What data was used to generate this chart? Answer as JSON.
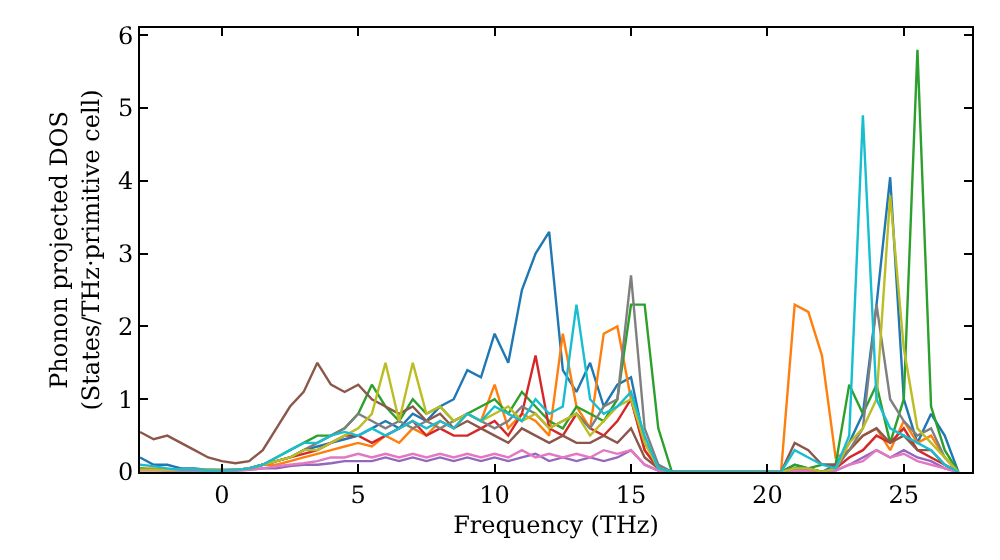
{
  "chart_data": {
    "type": "line",
    "xlabel": "Frequency (THz)",
    "ylabel": "Phonon projected DOS\n(States/THz·primitive cell)",
    "x": [
      -3,
      -2.5,
      -2,
      -1.5,
      -1,
      -0.5,
      0,
      0.5,
      1,
      1.5,
      2,
      2.5,
      3,
      3.5,
      4,
      4.5,
      5,
      5.5,
      6,
      6.5,
      7,
      7.5,
      8,
      8.5,
      9,
      9.5,
      10,
      10.5,
      11,
      11.5,
      12,
      12.5,
      13,
      13.5,
      14,
      14.5,
      15,
      15.5,
      16,
      16.5,
      17,
      17.5,
      18,
      18.5,
      19,
      19.5,
      20,
      20.5,
      21,
      21.5,
      22,
      22.5,
      23,
      23.5,
      24,
      24.5,
      25,
      25.5,
      26,
      26.5,
      27
    ],
    "xlim": [
      -3,
      27.5
    ],
    "ylim": [
      0,
      6.1
    ],
    "xticks": [
      0,
      5,
      10,
      15,
      20,
      25
    ],
    "yticks": [
      0,
      1,
      2,
      3,
      4,
      5,
      6
    ],
    "marker": "none",
    "line_style": "solid",
    "series": [
      {
        "color": "#1f77b4",
        "values": [
          0.2,
          0.1,
          0.1,
          0.05,
          0.05,
          0.03,
          0.02,
          0.02,
          0.05,
          0.1,
          0.15,
          0.2,
          0.3,
          0.35,
          0.4,
          0.45,
          0.5,
          0.6,
          0.7,
          0.6,
          0.8,
          0.7,
          0.9,
          1.0,
          1.4,
          1.3,
          1.9,
          1.5,
          2.5,
          3.0,
          3.3,
          1.4,
          1.1,
          1.5,
          0.9,
          1.2,
          1.3,
          0.4,
          0.1,
          0,
          0,
          0,
          0,
          0,
          0,
          0,
          0,
          0,
          0.1,
          0.05,
          0,
          0.1,
          0.4,
          0.8,
          2.3,
          4.05,
          1.0,
          0.4,
          0.8,
          0.5,
          0
        ]
      },
      {
        "color": "#ff7f0e",
        "values": [
          0.05,
          0.05,
          0.03,
          0.02,
          0.02,
          0.02,
          0.02,
          0.03,
          0.05,
          0.1,
          0.1,
          0.15,
          0.2,
          0.25,
          0.3,
          0.35,
          0.4,
          0.35,
          0.5,
          0.4,
          0.6,
          0.5,
          0.7,
          0.6,
          0.8,
          0.7,
          1.2,
          0.6,
          0.8,
          0.7,
          0.5,
          1.9,
          0.9,
          0.6,
          1.9,
          2.0,
          1.0,
          0.3,
          0.05,
          0,
          0,
          0,
          0,
          0,
          0,
          0,
          0,
          0,
          2.3,
          2.2,
          1.6,
          0.2,
          0.3,
          0.5,
          0.6,
          0.3,
          0.7,
          0.4,
          0.5,
          0.2,
          0
        ]
      },
      {
        "color": "#2ca02c",
        "values": [
          0.05,
          0.03,
          0.02,
          0.02,
          0.02,
          0.02,
          0.02,
          0.03,
          0.05,
          0.1,
          0.2,
          0.3,
          0.4,
          0.5,
          0.5,
          0.6,
          0.8,
          1.2,
          0.9,
          0.7,
          1.0,
          0.8,
          0.9,
          0.7,
          0.8,
          0.9,
          1.0,
          0.8,
          1.1,
          0.9,
          0.7,
          0.6,
          0.9,
          0.8,
          0.7,
          1.0,
          2.3,
          2.3,
          0.6,
          0,
          0,
          0,
          0,
          0,
          0,
          0,
          0,
          0,
          0.1,
          0.05,
          0.1,
          0.1,
          1.2,
          0.8,
          1.2,
          0.4,
          1.0,
          5.8,
          0.9,
          0.3,
          0
        ]
      },
      {
        "color": "#d62728",
        "values": [
          null,
          null,
          null,
          null,
          null,
          null,
          null,
          null,
          0.05,
          0.1,
          0.15,
          0.2,
          0.25,
          0.3,
          0.4,
          0.5,
          0.5,
          0.4,
          0.5,
          0.6,
          0.7,
          0.5,
          0.6,
          0.5,
          0.5,
          0.6,
          0.7,
          0.5,
          0.8,
          1.6,
          0.6,
          0.5,
          0.8,
          0.6,
          0.5,
          0.7,
          1.0,
          0.3,
          0.05,
          0,
          0,
          0,
          0,
          0,
          0,
          0,
          0,
          0,
          0.05,
          0.05,
          0,
          0.05,
          0.2,
          0.3,
          0.5,
          0.4,
          0.6,
          0.3,
          0.2,
          0.1,
          0
        ]
      },
      {
        "color": "#9467bd",
        "values": [
          null,
          null,
          null,
          0.02,
          0.02,
          0.02,
          0.02,
          0.02,
          0.03,
          0.05,
          0.05,
          0.08,
          0.1,
          0.1,
          0.12,
          0.15,
          0.15,
          0.15,
          0.2,
          0.15,
          0.2,
          0.15,
          0.2,
          0.15,
          0.2,
          0.15,
          0.2,
          0.15,
          0.2,
          0.25,
          0.15,
          0.2,
          0.15,
          0.2,
          0.15,
          0.2,
          0.3,
          0.1,
          0.02,
          0,
          0,
          0,
          0,
          0,
          0,
          0,
          0,
          0,
          0.02,
          0.02,
          0,
          0.02,
          0.1,
          0.2,
          0.3,
          0.2,
          0.3,
          0.2,
          0.15,
          0.05,
          0
        ]
      },
      {
        "color": "#8c564b",
        "values": [
          0.55,
          0.45,
          0.5,
          0.4,
          0.3,
          0.2,
          0.15,
          0.12,
          0.15,
          0.3,
          0.6,
          0.9,
          1.1,
          1.5,
          1.2,
          1.1,
          1.2,
          1.0,
          0.9,
          0.8,
          0.9,
          0.7,
          0.8,
          0.6,
          0.7,
          0.6,
          0.5,
          0.4,
          0.6,
          0.5,
          0.4,
          0.5,
          0.4,
          0.4,
          0.5,
          0.4,
          0.6,
          0.2,
          0.05,
          0,
          0,
          0,
          0,
          0,
          0,
          0,
          0,
          0,
          0.4,
          0.3,
          0.1,
          0.1,
          0.3,
          0.5,
          0.6,
          0.4,
          0.5,
          0.3,
          0.3,
          0.1,
          0
        ]
      },
      {
        "color": "#e377c2",
        "values": [
          0.02,
          0.02,
          0.02,
          0.02,
          0.02,
          0.02,
          0.02,
          0.02,
          0.03,
          0.05,
          0.08,
          0.1,
          0.12,
          0.15,
          0.2,
          0.2,
          0.25,
          0.2,
          0.25,
          0.2,
          0.25,
          0.2,
          0.25,
          0.2,
          0.25,
          0.2,
          0.25,
          0.2,
          0.3,
          0.2,
          0.25,
          0.2,
          0.25,
          0.2,
          0.3,
          0.25,
          0.3,
          0.1,
          0.02,
          0,
          0,
          0,
          0,
          0,
          0,
          0,
          0,
          0,
          0.02,
          0.02,
          0,
          0.02,
          0.1,
          0.15,
          0.3,
          0.2,
          0.25,
          0.15,
          0.1,
          0.05,
          0
        ]
      },
      {
        "color": "#7f7f7f",
        "values": [
          0.03,
          0.03,
          0.03,
          0.03,
          0.03,
          0.03,
          0.03,
          0.03,
          0.05,
          0.1,
          0.15,
          0.2,
          0.3,
          0.4,
          0.5,
          0.6,
          0.8,
          0.7,
          0.6,
          0.7,
          0.6,
          0.7,
          0.6,
          0.7,
          0.8,
          0.7,
          0.6,
          0.7,
          0.9,
          0.8,
          0.6,
          0.7,
          0.8,
          0.6,
          0.9,
          1.0,
          2.7,
          0.6,
          0.1,
          0,
          0,
          0,
          0,
          0,
          0,
          0,
          0,
          0,
          0.05,
          0.05,
          0,
          0.05,
          0.3,
          0.6,
          2.3,
          1.0,
          0.7,
          0.5,
          0.6,
          0.2,
          0
        ]
      },
      {
        "color": "#bcbd22",
        "values": [
          0.03,
          0.03,
          0.03,
          0.03,
          0.03,
          0.03,
          0.03,
          0.03,
          0.05,
          0.1,
          0.15,
          0.2,
          0.3,
          0.3,
          0.4,
          0.5,
          0.6,
          0.8,
          1.5,
          0.7,
          1.5,
          0.8,
          0.9,
          0.7,
          0.8,
          0.7,
          0.8,
          0.9,
          0.7,
          0.8,
          0.6,
          0.7,
          0.8,
          0.5,
          0.7,
          0.9,
          1.0,
          0.4,
          0.05,
          0,
          0,
          0,
          0,
          0,
          0,
          0,
          0,
          0,
          0.05,
          0.05,
          0,
          0.05,
          0.4,
          0.6,
          1.0,
          3.8,
          1.7,
          0.6,
          0.4,
          0.2,
          0
        ]
      },
      {
        "color": "#17becf",
        "values": [
          0.1,
          0.08,
          0.05,
          0.03,
          0.03,
          0.02,
          0.02,
          0.03,
          0.05,
          0.1,
          0.2,
          0.3,
          0.4,
          0.4,
          0.5,
          0.55,
          0.5,
          0.6,
          0.5,
          0.6,
          0.7,
          0.6,
          0.7,
          0.6,
          0.8,
          0.7,
          0.9,
          0.8,
          0.7,
          1.0,
          0.8,
          0.9,
          2.3,
          1.0,
          0.8,
          0.9,
          1.1,
          0.5,
          0.05,
          0,
          0,
          0,
          0,
          0,
          0,
          0,
          0,
          0,
          0.3,
          0.2,
          0.1,
          0.05,
          0.5,
          4.9,
          1.0,
          0.6,
          0.5,
          0.4,
          0.3,
          0.1,
          0
        ]
      }
    ]
  }
}
